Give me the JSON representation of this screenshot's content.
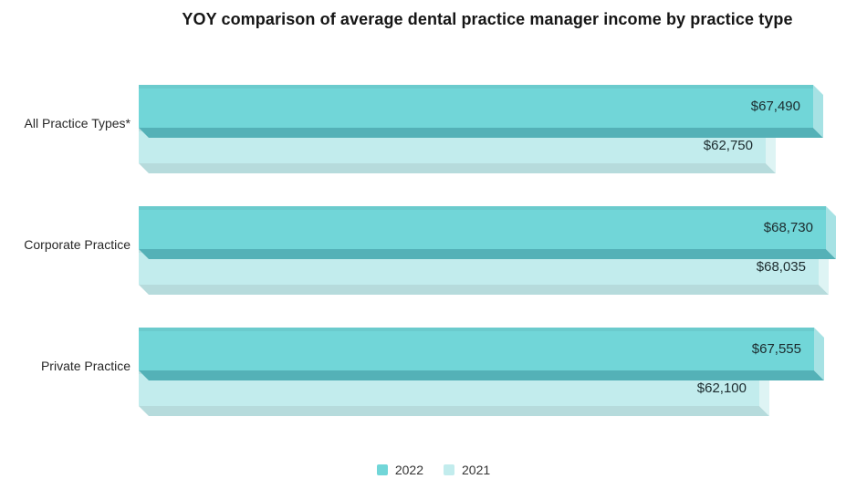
{
  "chart_data": {
    "type": "bar",
    "orientation": "horizontal",
    "title": "YOY comparison of average dental practice manager income by practice type",
    "categories": [
      "All Practice Types*",
      "Corporate Practice",
      "Private Practice"
    ],
    "series": [
      {
        "name": "2022",
        "color": "#71d6d8",
        "color_bottom_face": "#54b1b7",
        "color_right_face": "#a6e2e4",
        "values": [
          67490,
          68730,
          67555
        ],
        "value_labels": [
          "$67,490",
          "$68,730",
          "$67,555"
        ]
      },
      {
        "name": "2021",
        "color": "#c2eced",
        "color_bottom_face": "#b6dbdc",
        "color_right_face": "#def4f4",
        "values": [
          62750,
          68035,
          62100
        ],
        "value_labels": [
          "$62,750",
          "$68,035",
          "$62,100"
        ]
      }
    ],
    "value_axis": {
      "min": 0,
      "max_shown_value": 68730,
      "gridlines": false,
      "tick_labels": false
    },
    "legend_position": "bottom",
    "value_label_color": "#1c2b2e",
    "background": "#ffffff"
  }
}
